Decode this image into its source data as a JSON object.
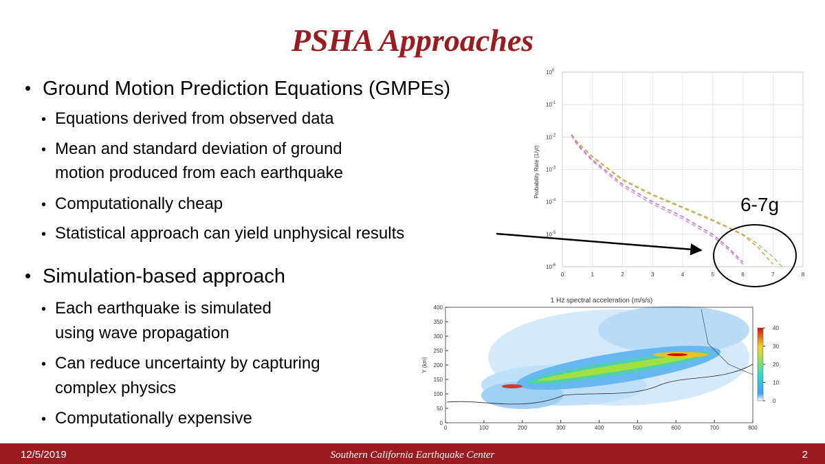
{
  "title": "PSHA Approaches",
  "bullets": [
    {
      "text": "Ground Motion Prediction Equations (GMPEs)",
      "items": [
        [
          "Equations derived from observed data"
        ],
        [
          "Mean and standard deviation of ground",
          "motion produced from each earthquake"
        ],
        [
          "Computationally cheap"
        ],
        [
          "Statistical approach can yield unphysical results"
        ]
      ]
    },
    {
      "text": "Simulation-based approach",
      "items": [
        [
          "Each earthquake is simulated",
          "using wave propagation"
        ],
        [
          "Can reduce uncertainty by capturing",
          "complex physics"
        ],
        [
          "Computationally expensive"
        ]
      ]
    }
  ],
  "annotation": "6-7g",
  "footer": {
    "date": "12/5/2019",
    "organization": "Southern California Earthquake Center",
    "page": "2"
  },
  "hazard_chart": {
    "type": "line",
    "ylabel": "Probability Rate (1/yr)",
    "log_y": true,
    "grid": true,
    "xlim": [
      0,
      8
    ],
    "xticks": [
      0,
      1,
      2,
      3,
      4,
      5,
      6,
      7,
      8
    ],
    "ylim": [
      1e-06,
      1
    ],
    "yticks": [
      {
        "value": 1,
        "label": "10",
        "exponent": "0"
      },
      {
        "value": 0.1,
        "label": "10",
        "exponent": "-1"
      },
      {
        "value": 0.01,
        "label": "10",
        "exponent": "-2"
      },
      {
        "value": 0.001,
        "label": "10",
        "exponent": "-3"
      },
      {
        "value": 0.0001,
        "label": "10",
        "exponent": "-4"
      },
      {
        "value": 1e-05,
        "label": "10",
        "exponent": "-5"
      },
      {
        "value": 1e-06,
        "label": "10",
        "exponent": "-6"
      }
    ],
    "x": [
      0.3,
      0.5,
      1,
      2,
      3,
      4,
      5,
      5.5,
      6,
      6.5,
      7,
      7.3
    ],
    "series": [
      {
        "color": "#8fd47a",
        "values": [
          0.012,
          0.007,
          0.0025,
          0.0005,
          0.00017,
          7e-05,
          2.8e-05,
          1.7e-05,
          1e-05,
          5e-06,
          2e-06,
          1e-06
        ]
      },
      {
        "color": "#e8a040",
        "values": [
          0.012,
          0.0068,
          0.0024,
          0.00047,
          0.00016,
          6.5e-05,
          2.6e-05,
          1.6e-05,
          9.5e-06,
          4e-06,
          1.2e-06,
          null
        ]
      },
      {
        "color": "#b07ad8",
        "values": [
          0.012,
          0.006,
          0.002,
          0.00035,
          0.0001,
          3.5e-05,
          1e-05,
          4e-06,
          1.4e-06,
          null,
          null,
          null
        ]
      },
      {
        "color": "#d890d0",
        "values": [
          0.011,
          0.0055,
          0.0018,
          0.0003,
          8.5e-05,
          3e-05,
          8.5e-06,
          3.5e-06,
          1.2e-06,
          null,
          null,
          null
        ]
      }
    ]
  },
  "spectral_map": {
    "title": "1 Hz spectral acceleration (m/s/s)",
    "ylabel": "Y (km)",
    "xlim": [
      0,
      800
    ],
    "xticks": [
      0,
      100,
      200,
      300,
      400,
      500,
      600,
      700,
      800
    ],
    "ylim": [
      0,
      400
    ],
    "yticks": [
      0,
      50,
      100,
      150,
      200,
      250,
      300,
      350,
      400
    ],
    "colorbar_lim": [
      0,
      40
    ],
    "colorbar_ticks": [
      0,
      10,
      20,
      30,
      40
    ]
  }
}
